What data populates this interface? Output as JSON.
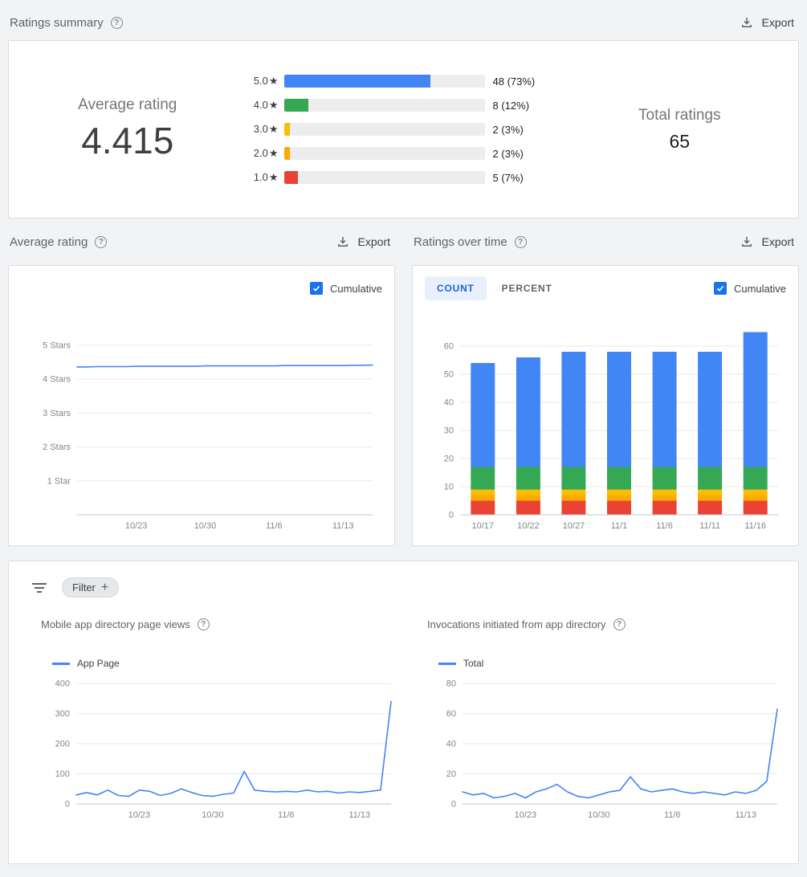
{
  "colors": {
    "blue": "#4285f4",
    "green": "#34a853",
    "yellow": "#fbbc04",
    "orange": "#f9ab00",
    "red": "#ea4335",
    "tab_selected_bg": "#e8f0fe",
    "tab_selected_text": "#1967d2",
    "checkbox_blue": "#1a73e8"
  },
  "ratings_summary": {
    "title": "Ratings summary",
    "export_label": "Export",
    "average_rating_label": "Average rating",
    "average_rating_value": "4.415",
    "total_ratings_label": "Total ratings",
    "total_ratings_value": "65",
    "bars": [
      {
        "label": "5.0",
        "star": "★",
        "value_label": "48 (73%)",
        "percent": 73,
        "color": "#4285f4"
      },
      {
        "label": "4.0",
        "star": "★",
        "value_label": "8 (12%)",
        "percent": 12,
        "color": "#34a853"
      },
      {
        "label": "3.0",
        "star": "★",
        "value_label": "2 (3%)",
        "percent": 3,
        "color": "#fbbc04"
      },
      {
        "label": "2.0",
        "star": "★",
        "value_label": "2 (3%)",
        "percent": 3,
        "color": "#f9ab00"
      },
      {
        "label": "1.0",
        "star": "★",
        "value_label": "5 (7%)",
        "percent": 7,
        "color": "#ea4335"
      }
    ]
  },
  "average_rating_section": {
    "title": "Average rating",
    "export_label": "Export",
    "cumulative_label": "Cumulative",
    "cumulative_checked": true
  },
  "ratings_over_time_section": {
    "title": "Ratings over time",
    "export_label": "Export",
    "tabs": [
      {
        "label": "COUNT",
        "selected": true
      },
      {
        "label": "PERCENT",
        "selected": false
      }
    ],
    "cumulative_label": "Cumulative",
    "cumulative_checked": true
  },
  "bottom_section": {
    "filter_label": "Filter",
    "page_views_title": "Mobile app directory page views",
    "page_views_legend": "App Page",
    "invocations_title": "Invocations initiated from app directory",
    "invocations_legend": "Total"
  },
  "chart_data": [
    {
      "id": "average_rating_cumulative",
      "type": "line",
      "title": "Average rating (cumulative)",
      "xlabel": "",
      "ylabel": "Stars",
      "grid": "horizontal",
      "legend_position": "none",
      "x_range": [
        0,
        30
      ],
      "x_tick_labels": [
        "10/23",
        "10/30",
        "11/6",
        "11/13"
      ],
      "x_tick_positions": [
        6,
        13,
        20,
        27
      ],
      "ylim": [
        0,
        5.4
      ],
      "y_ticks": [
        {
          "value": 5,
          "label": "5 Stars"
        },
        {
          "value": 4,
          "label": "4 Stars"
        },
        {
          "value": 3,
          "label": "3 Stars"
        },
        {
          "value": 2,
          "label": "2 Stars"
        },
        {
          "value": 1,
          "label": "1 Star"
        }
      ],
      "series": [
        {
          "name": "Cumulative average rating",
          "color": "#4285f4",
          "values": [
            4.36,
            4.36,
            4.37,
            4.37,
            4.37,
            4.37,
            4.38,
            4.38,
            4.38,
            4.38,
            4.38,
            4.38,
            4.38,
            4.39,
            4.39,
            4.39,
            4.39,
            4.39,
            4.39,
            4.39,
            4.39,
            4.4,
            4.4,
            4.4,
            4.4,
            4.4,
            4.4,
            4.4,
            4.41,
            4.41,
            4.415
          ]
        }
      ]
    },
    {
      "id": "ratings_over_time_count",
      "type": "bar",
      "stacked": true,
      "title": "Ratings over time (cumulative count)",
      "xlabel": "",
      "ylabel": "Count",
      "grid": "horizontal",
      "categories": [
        "10/17",
        "10/22",
        "10/27",
        "11/1",
        "11/6",
        "11/11",
        "11/16"
      ],
      "ylim": [
        0,
        68
      ],
      "y_ticks": [
        0,
        10,
        20,
        30,
        40,
        50,
        60
      ],
      "totals": [
        54,
        56,
        58,
        58,
        58,
        58,
        65
      ],
      "series": [
        {
          "name": "1 star",
          "color": "#ea4335",
          "values": [
            5,
            5,
            5,
            5,
            5,
            5,
            5
          ]
        },
        {
          "name": "2 stars",
          "color": "#f9ab00",
          "values": [
            2,
            2,
            2,
            2,
            2,
            2,
            2
          ]
        },
        {
          "name": "3 stars",
          "color": "#fbbc04",
          "values": [
            2,
            2,
            2,
            2,
            2,
            2,
            2
          ]
        },
        {
          "name": "4 stars",
          "color": "#34a853",
          "values": [
            8,
            8,
            8,
            8,
            8,
            8,
            8
          ]
        },
        {
          "name": "5 stars",
          "color": "#4285f4",
          "values": [
            37,
            39,
            41,
            41,
            41,
            41,
            48
          ]
        }
      ]
    },
    {
      "id": "mobile_app_directory_page_views",
      "type": "line",
      "title": "Mobile app directory page views",
      "xlabel": "",
      "ylabel": "Views",
      "grid": "horizontal",
      "legend": [
        "App Page"
      ],
      "x_range": [
        0,
        30
      ],
      "x_tick_labels": [
        "10/23",
        "10/30",
        "11/6",
        "11/13"
      ],
      "x_tick_positions": [
        6,
        13,
        20,
        27
      ],
      "ylim": [
        0,
        400
      ],
      "y_ticks": [
        0,
        100,
        200,
        300,
        400
      ],
      "series": [
        {
          "name": "App Page",
          "color": "#4285f4",
          "values": [
            30,
            38,
            30,
            46,
            28,
            25,
            46,
            42,
            28,
            35,
            50,
            38,
            28,
            25,
            32,
            36,
            108,
            46,
            42,
            40,
            42,
            40,
            46,
            40,
            42,
            36,
            40,
            38,
            42,
            46,
            340
          ]
        }
      ]
    },
    {
      "id": "invocations_from_app_directory",
      "type": "line",
      "title": "Invocations initiated from app directory",
      "xlabel": "",
      "ylabel": "Invocations",
      "grid": "horizontal",
      "legend": [
        "Total"
      ],
      "x_range": [
        0,
        30
      ],
      "x_tick_labels": [
        "10/23",
        "10/30",
        "11/6",
        "11/13"
      ],
      "x_tick_positions": [
        6,
        13,
        20,
        27
      ],
      "ylim": [
        0,
        80
      ],
      "y_ticks": [
        0,
        20,
        40,
        60,
        80
      ],
      "series": [
        {
          "name": "Total",
          "color": "#4285f4",
          "values": [
            8,
            6,
            7,
            4,
            5,
            7,
            4,
            8,
            10,
            13,
            8,
            5,
            4,
            6,
            8,
            9,
            18,
            10,
            8,
            9,
            10,
            8,
            7,
            8,
            7,
            6,
            8,
            7,
            9,
            15,
            63
          ]
        }
      ]
    }
  ]
}
